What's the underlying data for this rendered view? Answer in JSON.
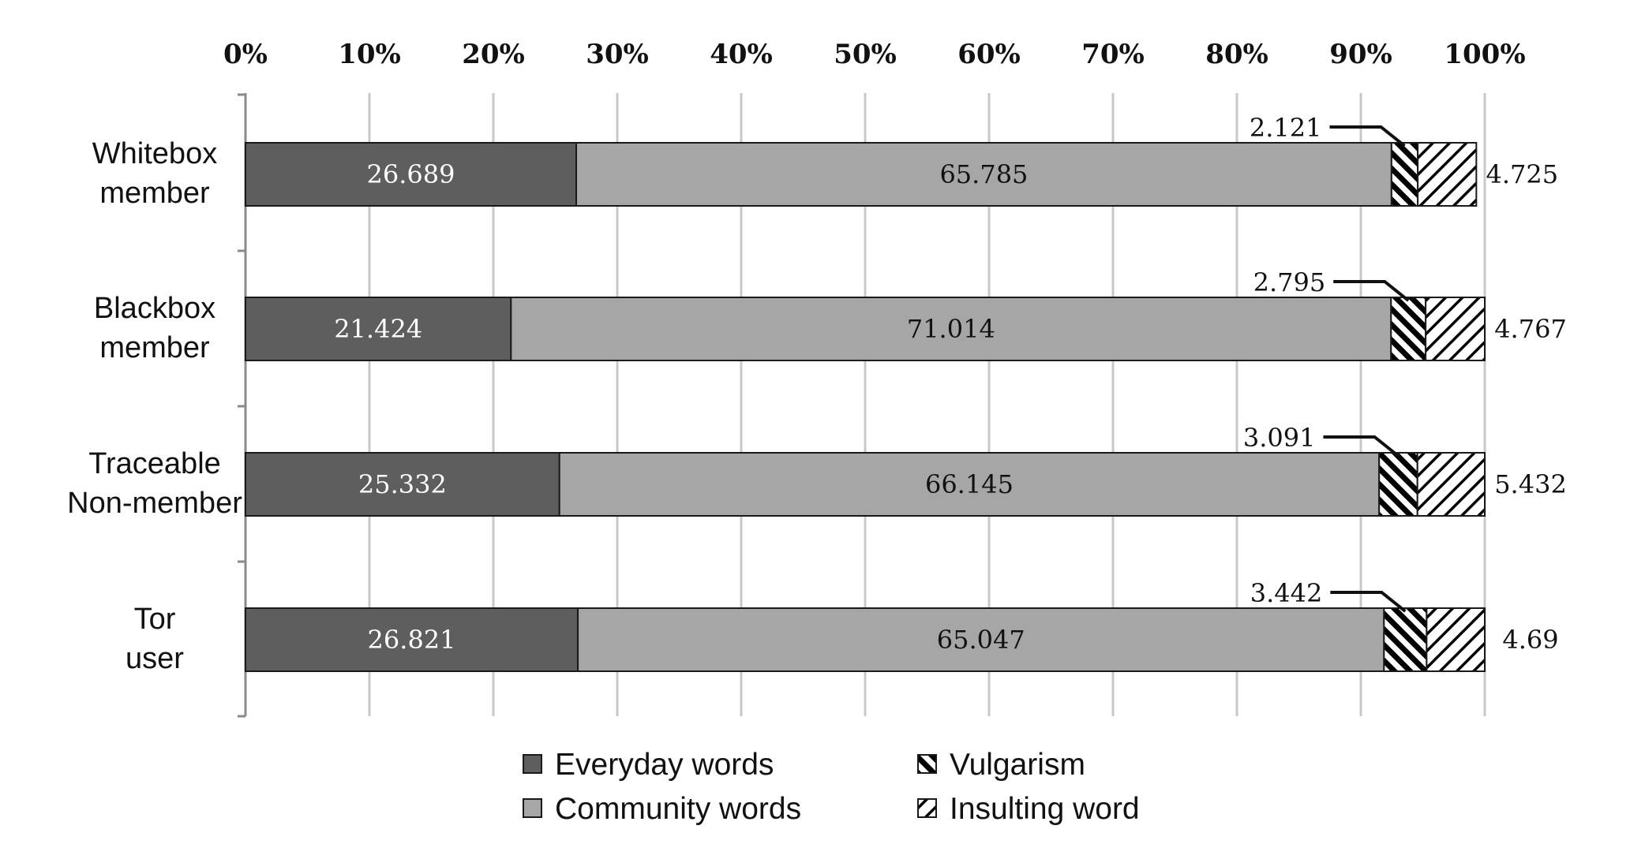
{
  "chart_data": {
    "type": "bar",
    "orientation": "horizontal",
    "stacked": true,
    "normalized": true,
    "title": "",
    "xlabel": "",
    "ylabel": "",
    "xlim": [
      0,
      100
    ],
    "x_ticks": [
      "0%",
      "10%",
      "20%",
      "30%",
      "40%",
      "50%",
      "60%",
      "70%",
      "80%",
      "90%",
      "100%"
    ],
    "grid": "vertical",
    "legend_position": "bottom",
    "categories": [
      [
        "Whitebox",
        "member"
      ],
      [
        "Blackbox",
        "member"
      ],
      [
        "Traceable",
        "Non-member"
      ],
      [
        "Tor",
        "user"
      ]
    ],
    "series": [
      {
        "name": "Everyday words",
        "color": "#5e5e5e",
        "pattern": "solid-dark",
        "values": [
          26.689,
          21.424,
          25.332,
          26.821
        ]
      },
      {
        "name": "Community words",
        "color": "#a6a6a6",
        "pattern": "solid-light",
        "values": [
          65.785,
          71.014,
          66.145,
          65.047
        ]
      },
      {
        "name": "Vulgarism",
        "color": "#000000",
        "pattern": "hatch-backslash",
        "values": [
          2.121,
          2.795,
          3.091,
          3.442
        ]
      },
      {
        "name": "Insulting word",
        "color": "#000000",
        "pattern": "hatch-slash",
        "values": [
          4.725,
          4.767,
          5.432,
          4.69
        ]
      }
    ],
    "value_labels": [
      [
        "26.689",
        "65.785",
        "2.121",
        "4.725"
      ],
      [
        "21.424",
        "71.014",
        "2.795",
        "4.767"
      ],
      [
        "25.332",
        "66.145",
        "3.091",
        "5.432"
      ],
      [
        "26.821",
        "65.047",
        "3.442",
        "4.69"
      ]
    ],
    "legend_entries": [
      "Everyday words",
      "Community words",
      "Vulgarism",
      "Insulting word"
    ]
  }
}
